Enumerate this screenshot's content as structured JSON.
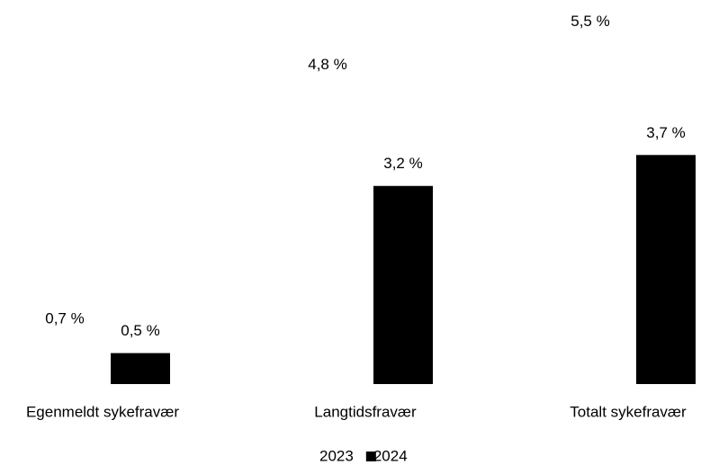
{
  "chart_data": {
    "type": "bar",
    "categories": [
      "Egenmeldt sykefravær",
      "Langtidsfravær",
      "Totalt sykefravær"
    ],
    "series": [
      {
        "name": "2023",
        "color": "#ffffff",
        "values": [
          0.7,
          4.8,
          5.5
        ],
        "value_labels": [
          "0,7 %",
          "4,8 %",
          "5,5 %"
        ]
      },
      {
        "name": "2024",
        "color": "#000000",
        "values": [
          0.5,
          3.2,
          3.7
        ],
        "value_labels": [
          "0,5 %",
          "3,2 %",
          "3,7 %"
        ]
      }
    ],
    "ylim": [
      0,
      6
    ],
    "grid": false,
    "legend": "bottom"
  }
}
